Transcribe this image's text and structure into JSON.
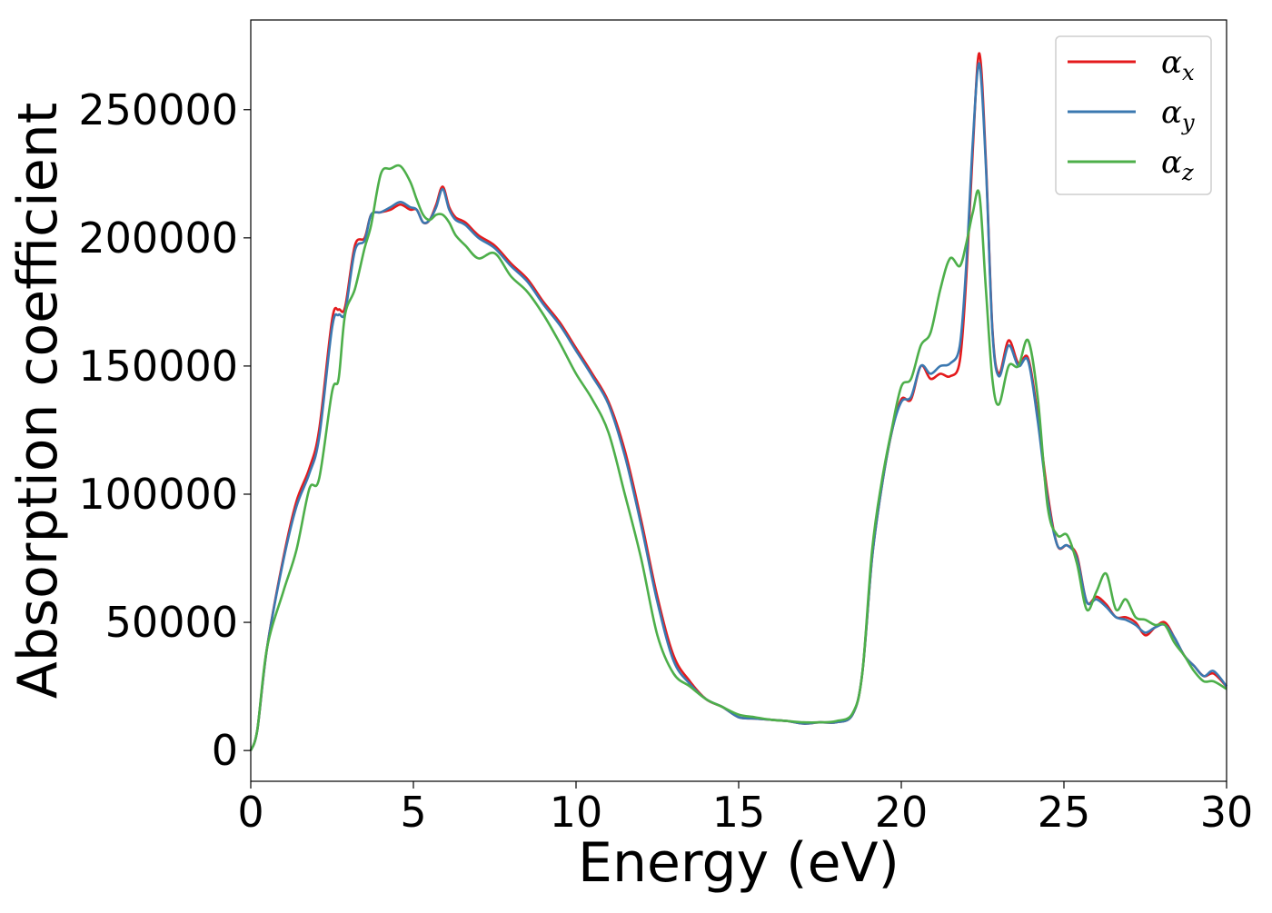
{
  "chart_data": {
    "type": "line",
    "title": "",
    "xlabel": "Energy (eV)",
    "ylabel": "Absorption coefficient",
    "xlim": [
      0,
      30
    ],
    "ylim": [
      -12000,
      285000
    ],
    "xticks": [
      0,
      5,
      10,
      15,
      20,
      25,
      30
    ],
    "xtick_labels": [
      "0",
      "5",
      "10",
      "15",
      "20",
      "25",
      "30"
    ],
    "yticks": [
      0,
      50000,
      100000,
      150000,
      200000,
      250000
    ],
    "ytick_labels": [
      "0",
      "50000",
      "100000",
      "150000",
      "200000",
      "250000"
    ],
    "grid": false,
    "legend_position": "top-right",
    "series": [
      {
        "name": "α_x",
        "symbol": "α",
        "subscript": "x",
        "color": "#e41a1c",
        "x": [
          0,
          0.2,
          0.5,
          1.0,
          1.4,
          1.8,
          2.1,
          2.5,
          2.7,
          2.9,
          3.2,
          3.5,
          3.7,
          4.0,
          4.3,
          4.6,
          4.9,
          5.1,
          5.3,
          5.5,
          5.7,
          5.9,
          6.1,
          6.3,
          6.6,
          7.0,
          7.5,
          8.0,
          8.5,
          9.0,
          9.5,
          10.0,
          10.5,
          11.0,
          11.5,
          12.0,
          12.5,
          13.0,
          13.5,
          14.0,
          14.5,
          15.0,
          15.5,
          16.0,
          16.5,
          17.0,
          17.5,
          18.0,
          18.5,
          18.8,
          19.1,
          19.4,
          19.7,
          20.0,
          20.3,
          20.6,
          20.9,
          21.2,
          21.5,
          21.8,
          22.0,
          22.2,
          22.4,
          22.6,
          22.8,
          23.0,
          23.3,
          23.6,
          23.9,
          24.2,
          24.5,
          24.8,
          25.1,
          25.4,
          25.7,
          26.0,
          26.3,
          26.6,
          26.9,
          27.2,
          27.5,
          27.8,
          28.1,
          28.4,
          28.7,
          29.0,
          29.3,
          29.6,
          30.0
        ],
        "y": [
          0,
          8000,
          40000,
          75000,
          97000,
          110000,
          125000,
          168000,
          172000,
          173000,
          197000,
          200000,
          209000,
          210000,
          211000,
          213000,
          211000,
          211000,
          206000,
          207000,
          213000,
          220000,
          212000,
          208000,
          206000,
          201000,
          197000,
          190000,
          184000,
          175000,
          167000,
          157000,
          147000,
          136000,
          117000,
          90000,
          60000,
          37000,
          27000,
          20000,
          17000,
          13000,
          12500,
          12000,
          11500,
          10500,
          11000,
          11000,
          14000,
          30000,
          75000,
          103000,
          124000,
          137000,
          137000,
          150000,
          145000,
          147000,
          146000,
          152000,
          185000,
          235000,
          272000,
          230000,
          165000,
          147000,
          160000,
          151000,
          153000,
          130000,
          100000,
          80000,
          80000,
          76000,
          58000,
          60000,
          57000,
          52000,
          52000,
          50000,
          45000,
          48000,
          50000,
          44000,
          37000,
          33000,
          29000,
          30000,
          25000
        ]
      },
      {
        "name": "α_y",
        "symbol": "α",
        "subscript": "y",
        "color": "#3b78b0",
        "x": [
          0,
          0.2,
          0.5,
          1.0,
          1.4,
          1.8,
          2.1,
          2.5,
          2.7,
          2.9,
          3.2,
          3.5,
          3.7,
          4.0,
          4.3,
          4.6,
          4.9,
          5.1,
          5.3,
          5.5,
          5.7,
          5.9,
          6.1,
          6.3,
          6.6,
          7.0,
          7.5,
          8.0,
          8.5,
          9.0,
          9.5,
          10.0,
          10.5,
          11.0,
          11.5,
          12.0,
          12.5,
          13.0,
          13.5,
          14.0,
          14.5,
          15.0,
          15.5,
          16.0,
          16.5,
          17.0,
          17.5,
          18.0,
          18.5,
          18.8,
          19.1,
          19.4,
          19.7,
          20.0,
          20.3,
          20.6,
          20.9,
          21.2,
          21.5,
          21.8,
          22.0,
          22.2,
          22.4,
          22.6,
          22.8,
          23.0,
          23.3,
          23.6,
          23.9,
          24.2,
          24.5,
          24.8,
          25.1,
          25.4,
          25.7,
          26.0,
          26.3,
          26.6,
          26.9,
          27.2,
          27.5,
          27.8,
          28.1,
          28.4,
          28.7,
          29.0,
          29.3,
          29.6,
          30.0
        ],
        "y": [
          0,
          8000,
          40000,
          74000,
          95000,
          108000,
          122000,
          165000,
          170000,
          171000,
          195000,
          199000,
          209000,
          210000,
          212000,
          214000,
          212000,
          211000,
          206000,
          207000,
          212000,
          219000,
          211000,
          207000,
          205000,
          200000,
          196000,
          189000,
          183000,
          174000,
          166000,
          156000,
          146000,
          135000,
          115000,
          88000,
          58000,
          35000,
          26000,
          20000,
          17000,
          13000,
          12500,
          12000,
          11500,
          10500,
          11000,
          11000,
          14000,
          30000,
          75000,
          103000,
          124000,
          136000,
          138000,
          150000,
          147000,
          150000,
          151000,
          158000,
          190000,
          238000,
          268000,
          228000,
          164000,
          146000,
          158000,
          150000,
          152000,
          128000,
          98000,
          80000,
          80000,
          75000,
          58000,
          59000,
          56000,
          52000,
          51000,
          49000,
          46000,
          48000,
          49000,
          44000,
          37000,
          33000,
          29000,
          31000,
          25000
        ]
      },
      {
        "name": "α_z",
        "symbol": "α",
        "subscript": "z",
        "color": "#4daf4a",
        "x": [
          0,
          0.2,
          0.5,
          1.0,
          1.4,
          1.8,
          2.1,
          2.5,
          2.7,
          2.9,
          3.2,
          3.5,
          3.7,
          4.0,
          4.3,
          4.6,
          4.9,
          5.1,
          5.3,
          5.5,
          5.7,
          5.9,
          6.1,
          6.3,
          6.6,
          7.0,
          7.5,
          8.0,
          8.5,
          9.0,
          9.5,
          10.0,
          10.5,
          11.0,
          11.5,
          12.0,
          12.5,
          13.0,
          13.5,
          14.0,
          14.5,
          15.0,
          15.5,
          16.0,
          16.5,
          17.0,
          17.5,
          18.0,
          18.5,
          18.8,
          19.1,
          19.4,
          19.7,
          20.0,
          20.3,
          20.6,
          20.9,
          21.2,
          21.5,
          21.8,
          22.0,
          22.2,
          22.4,
          22.6,
          22.8,
          23.0,
          23.3,
          23.6,
          23.9,
          24.2,
          24.5,
          24.8,
          25.1,
          25.4,
          25.7,
          26.0,
          26.3,
          26.6,
          26.9,
          27.2,
          27.5,
          27.8,
          28.1,
          28.4,
          28.7,
          29.0,
          29.3,
          29.6,
          30.0
        ],
        "y": [
          0,
          8000,
          40000,
          62000,
          78000,
          102000,
          106000,
          140000,
          145000,
          170000,
          180000,
          196000,
          205000,
          225000,
          227000,
          228000,
          222000,
          215000,
          209000,
          207000,
          209000,
          209000,
          206000,
          201000,
          197000,
          192000,
          194000,
          185000,
          179000,
          170000,
          159000,
          147000,
          137000,
          124000,
          100000,
          75000,
          45000,
          30000,
          25000,
          20000,
          17000,
          14000,
          13000,
          12000,
          11500,
          11000,
          11000,
          11500,
          14500,
          30000,
          78000,
          105000,
          125000,
          142000,
          145000,
          158000,
          163000,
          180000,
          192000,
          189000,
          198000,
          210000,
          217000,
          180000,
          145000,
          135000,
          150000,
          150000,
          160000,
          137000,
          95000,
          84000,
          84000,
          73000,
          55000,
          62000,
          69000,
          55000,
          59000,
          52000,
          51000,
          49000,
          49000,
          42000,
          37000,
          31000,
          27000,
          27000,
          24000
        ]
      }
    ]
  }
}
